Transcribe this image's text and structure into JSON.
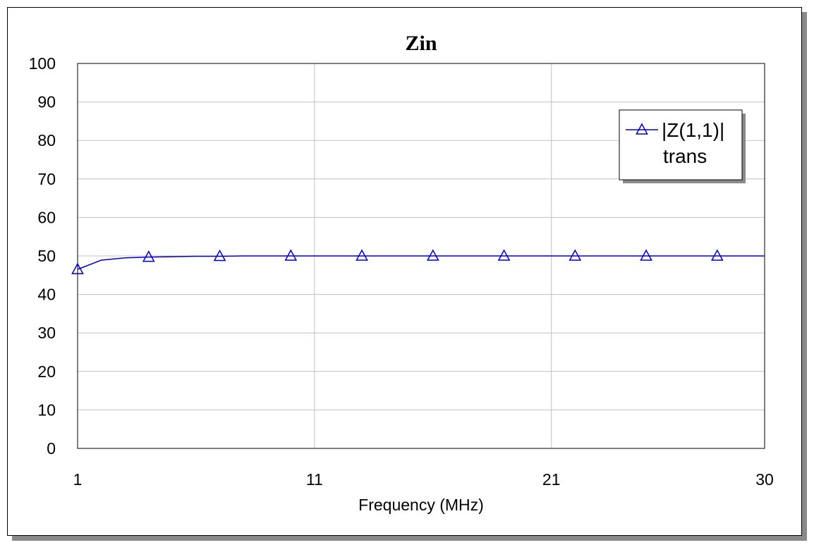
{
  "chart_data": {
    "type": "line",
    "title": "Zin",
    "xlabel": "Frequency (MHz)",
    "ylabel": "",
    "xlim": [
      1,
      30
    ],
    "ylim": [
      0,
      100
    ],
    "x_ticks": [
      "1",
      "11",
      "21",
      "30"
    ],
    "y_ticks": [
      "0",
      "10",
      "20",
      "30",
      "40",
      "50",
      "60",
      "70",
      "80",
      "90",
      "100"
    ],
    "grid": true,
    "legend_position": "top-right",
    "series": [
      {
        "name": "|Z(1,1)|",
        "name_line2": "trans",
        "color": "#0000c8",
        "marker": "triangle",
        "x": [
          1,
          2,
          3,
          4,
          5,
          6,
          7,
          8,
          9,
          10,
          11,
          12,
          13,
          14,
          15,
          16,
          17,
          18,
          19,
          20,
          21,
          22,
          23,
          24,
          25,
          26,
          27,
          28,
          29,
          30
        ],
        "y": [
          46.5,
          48.9,
          49.5,
          49.7,
          49.8,
          49.9,
          49.9,
          50.0,
          50.0,
          50.0,
          50.0,
          50.0,
          50.0,
          50.0,
          50.0,
          50.0,
          50.0,
          50.0,
          50.0,
          50.0,
          50.0,
          50.0,
          50.0,
          50.0,
          50.0,
          50.0,
          50.0,
          50.0,
          50.0,
          50.0
        ],
        "marker_x": [
          1,
          4,
          7,
          10,
          13,
          16,
          19,
          22,
          25,
          28
        ],
        "marker_y": [
          46.5,
          49.7,
          49.9,
          50.0,
          50.0,
          50.0,
          50.0,
          50.0,
          50.0,
          50.0
        ]
      }
    ]
  }
}
